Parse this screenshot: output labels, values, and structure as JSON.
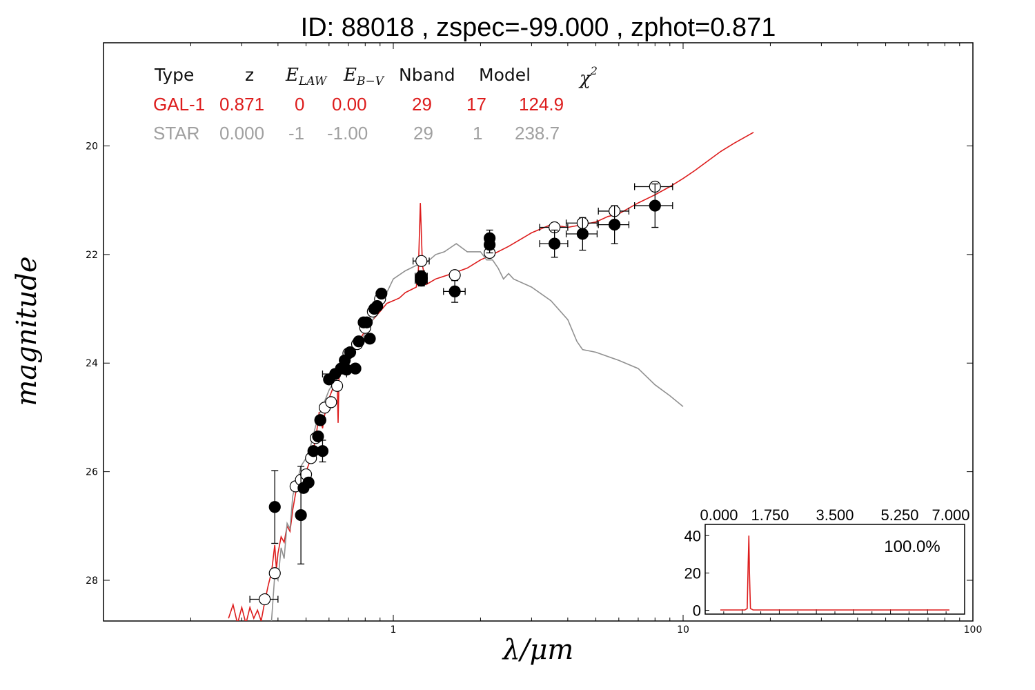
{
  "title": "ID:  88018 , zspec=-99.000 , zphot=0.871",
  "colors": {
    "galaxy": "#dd1c1c",
    "star": "#909090",
    "axis": "#000000"
  },
  "fit_table": {
    "headers": {
      "type": "Type",
      "z": "z",
      "elaw_base": "E",
      "elaw_sub": "LAW",
      "ebv_base": "E",
      "ebv_sub": "B−V",
      "nband": "Nband",
      "model": "Model",
      "chi_base": "χ",
      "chi_sup": "2"
    },
    "rows": [
      {
        "type": "GAL-1",
        "z": "0.871",
        "elaw": "0",
        "ebv": "0.00",
        "nband": "29",
        "model": "17",
        "chi2": "124.9",
        "color": "#dd1c1c"
      },
      {
        "type": "STAR",
        "z": "0.000",
        "elaw": "-1",
        "ebv": "-1.00",
        "nband": "29",
        "model": "1",
        "chi2": "238.7",
        "color": "#a0a0a0"
      }
    ]
  },
  "chart_data": [
    {
      "type": "scatter",
      "xlabel": "λ/μm",
      "ylabel": "magnitude",
      "xscale": "log",
      "xlim": [
        0.1,
        100
      ],
      "ylim": [
        28.75,
        18.1
      ],
      "y_inverted": true,
      "xticks": [
        1,
        10,
        100
      ],
      "xtick_labels": [
        "1",
        "10",
        "100"
      ],
      "yticks": [
        20,
        22,
        24,
        26,
        28
      ],
      "ytick_labels": [
        "20",
        "22",
        "24",
        "26",
        "28"
      ],
      "grid": false,
      "series": [
        {
          "kind": "model_line",
          "color": "#dd1c1c",
          "points": [
            [
              0.27,
              28.7
            ],
            [
              0.28,
              28.45
            ],
            [
              0.29,
              28.8
            ],
            [
              0.3,
              28.5
            ],
            [
              0.31,
              28.8
            ],
            [
              0.32,
              28.5
            ],
            [
              0.33,
              28.7
            ],
            [
              0.34,
              28.55
            ],
            [
              0.35,
              28.75
            ],
            [
              0.36,
              28.4
            ],
            [
              0.37,
              28.1
            ],
            [
              0.38,
              27.85
            ],
            [
              0.385,
              27.6
            ],
            [
              0.39,
              27.35
            ],
            [
              0.395,
              27.8
            ],
            [
              0.4,
              27.5
            ],
            [
              0.41,
              27.2
            ],
            [
              0.42,
              27.3
            ],
            [
              0.43,
              27.0
            ],
            [
              0.44,
              27.1
            ],
            [
              0.45,
              26.7
            ],
            [
              0.46,
              26.4
            ],
            [
              0.47,
              26.2
            ],
            [
              0.48,
              26.35
            ],
            [
              0.49,
              26.05
            ],
            [
              0.5,
              26.0
            ],
            [
              0.52,
              25.75
            ],
            [
              0.54,
              25.4
            ],
            [
              0.555,
              24.9
            ],
            [
              0.57,
              25.2
            ],
            [
              0.58,
              24.95
            ],
            [
              0.6,
              24.65
            ],
            [
              0.62,
              24.45
            ],
            [
              0.64,
              24.35
            ],
            [
              0.645,
              25.1
            ],
            [
              0.65,
              24.25
            ],
            [
              0.67,
              24.15
            ],
            [
              0.7,
              23.95
            ],
            [
              0.73,
              23.8
            ],
            [
              0.76,
              23.6
            ],
            [
              0.8,
              23.4
            ],
            [
              0.85,
              23.2
            ],
            [
              0.9,
              23.05
            ],
            [
              0.95,
              22.9
            ],
            [
              1.0,
              22.85
            ],
            [
              1.05,
              22.8
            ],
            [
              1.1,
              22.7
            ],
            [
              1.15,
              22.65
            ],
            [
              1.2,
              22.6
            ],
            [
              1.22,
              22.3
            ],
            [
              1.24,
              21.05
            ],
            [
              1.26,
              22.2
            ],
            [
              1.3,
              22.55
            ],
            [
              1.4,
              22.45
            ],
            [
              1.6,
              22.35
            ],
            [
              1.8,
              22.25
            ],
            [
              2.0,
              22.1
            ],
            [
              2.2,
              22.0
            ],
            [
              2.5,
              21.85
            ],
            [
              3.0,
              21.6
            ],
            [
              3.5,
              21.45
            ],
            [
              4.0,
              21.5
            ],
            [
              4.5,
              21.45
            ],
            [
              5.0,
              21.4
            ],
            [
              5.5,
              21.3
            ],
            [
              6.0,
              21.25
            ],
            [
              7.0,
              21.05
            ],
            [
              8.0,
              20.9
            ],
            [
              9.0,
              20.75
            ],
            [
              10.0,
              20.6
            ],
            [
              11.0,
              20.45
            ],
            [
              12.0,
              20.3
            ],
            [
              13.5,
              20.1
            ],
            [
              15.0,
              19.95
            ],
            [
              17.5,
              19.75
            ]
          ]
        },
        {
          "kind": "model_line",
          "color": "#909090",
          "points": [
            [
              0.38,
              28.75
            ],
            [
              0.39,
              27.9
            ],
            [
              0.4,
              28.0
            ],
            [
              0.41,
              27.4
            ],
            [
              0.42,
              27.6
            ],
            [
              0.43,
              26.95
            ],
            [
              0.44,
              27.05
            ],
            [
              0.45,
              26.45
            ],
            [
              0.46,
              26.2
            ],
            [
              0.47,
              26.1
            ],
            [
              0.48,
              25.9
            ],
            [
              0.5,
              25.75
            ],
            [
              0.52,
              25.5
            ],
            [
              0.54,
              25.15
            ],
            [
              0.56,
              24.9
            ],
            [
              0.58,
              24.7
            ],
            [
              0.6,
              24.5
            ],
            [
              0.63,
              24.3
            ],
            [
              0.66,
              24.15
            ],
            [
              0.7,
              23.95
            ],
            [
              0.74,
              23.75
            ],
            [
              0.78,
              23.55
            ],
            [
              0.82,
              23.35
            ],
            [
              0.86,
              23.15
            ],
            [
              0.9,
              22.95
            ],
            [
              0.95,
              22.7
            ],
            [
              1.0,
              22.45
            ],
            [
              1.1,
              22.3
            ],
            [
              1.2,
              22.2
            ],
            [
              1.3,
              22.15
            ],
            [
              1.4,
              22.0
            ],
            [
              1.5,
              21.95
            ],
            [
              1.65,
              21.8
            ],
            [
              1.8,
              21.95
            ],
            [
              2.0,
              21.95
            ],
            [
              2.1,
              22.1
            ],
            [
              2.2,
              22.1
            ],
            [
              2.3,
              22.25
            ],
            [
              2.4,
              22.45
            ],
            [
              2.5,
              22.35
            ],
            [
              2.6,
              22.45
            ],
            [
              3.0,
              22.6
            ],
            [
              3.5,
              22.85
            ],
            [
              4.0,
              23.2
            ],
            [
              4.3,
              23.6
            ],
            [
              4.5,
              23.75
            ],
            [
              5.0,
              23.8
            ],
            [
              6.0,
              23.95
            ],
            [
              7.0,
              24.1
            ],
            [
              8.0,
              24.4
            ],
            [
              9.0,
              24.6
            ],
            [
              10.0,
              24.8
            ]
          ]
        },
        {
          "kind": "observed",
          "fill": "#000000",
          "points": [
            [
              0.39,
              26.65,
              0.0,
              0.67
            ],
            [
              0.48,
              26.8,
              0.0,
              0.9
            ],
            [
              0.49,
              26.3,
              0.0,
              0.0
            ],
            [
              0.51,
              26.2,
              0.0,
              0.0
            ],
            [
              0.53,
              25.62,
              0.0,
              0.0
            ],
            [
              0.55,
              25.35,
              0.0,
              0.0
            ],
            [
              0.56,
              25.05,
              0.0,
              0.0
            ],
            [
              0.57,
              25.62,
              0.0,
              0.2
            ],
            [
              0.6,
              24.3,
              0.0,
              0.0
            ],
            [
              0.63,
              24.2,
              0.06,
              0.0
            ],
            [
              0.66,
              24.1,
              0.0,
              0.0
            ],
            [
              0.68,
              23.95,
              0.0,
              0.0
            ],
            [
              0.69,
              24.12,
              0.0,
              0.0
            ],
            [
              0.71,
              23.8,
              0.0,
              0.0
            ],
            [
              0.74,
              24.1,
              0.0,
              0.0
            ],
            [
              0.76,
              23.6,
              0.0,
              0.0
            ],
            [
              0.79,
              23.25,
              0.0,
              0.0
            ],
            [
              0.81,
              23.25,
              0.0,
              0.0
            ],
            [
              0.83,
              23.55,
              0.0,
              0.0
            ],
            [
              0.86,
              23.0,
              0.0,
              0.0
            ],
            [
              0.88,
              22.95,
              0.0,
              0.0
            ],
            [
              0.91,
              22.72,
              0.0,
              0.0
            ],
            [
              1.25,
              22.4,
              0.06,
              0.1
            ],
            [
              1.25,
              22.48,
              0.06,
              0.1
            ],
            [
              1.63,
              22.68,
              0.14,
              0.2
            ],
            [
              2.15,
              21.7,
              0.0,
              0.15
            ],
            [
              2.15,
              21.82,
              0.0,
              0.15
            ],
            [
              3.6,
              21.8,
              0.4,
              0.25
            ],
            [
              4.5,
              21.62,
              0.55,
              0.3
            ],
            [
              5.8,
              21.45,
              0.7,
              0.35
            ],
            [
              8.0,
              21.1,
              1.2,
              0.4
            ]
          ]
        },
        {
          "kind": "model_magnitudes",
          "fill": "#ffffff",
          "points": [
            [
              0.36,
              28.35,
              0.04
            ],
            [
              0.39,
              27.87,
              0.0
            ],
            [
              0.46,
              26.27,
              0.0
            ],
            [
              0.48,
              26.15,
              0.0
            ],
            [
              0.5,
              26.05,
              0.0
            ],
            [
              0.52,
              25.75,
              0.0
            ],
            [
              0.54,
              25.38,
              0.0
            ],
            [
              0.56,
              25.05,
              0.0
            ],
            [
              0.58,
              24.82,
              0.0
            ],
            [
              0.61,
              24.72,
              0.0
            ],
            [
              0.64,
              24.42,
              0.0
            ],
            [
              0.7,
              23.82,
              0.0
            ],
            [
              0.75,
              23.65,
              0.0
            ],
            [
              0.8,
              23.35,
              0.0
            ],
            [
              0.85,
              23.05,
              0.0
            ],
            [
              0.9,
              22.82,
              0.0
            ],
            [
              1.25,
              22.12,
              0.08
            ],
            [
              1.63,
              22.38,
              0.0
            ],
            [
              2.15,
              21.97,
              0.0
            ],
            [
              3.6,
              21.5,
              0.4
            ],
            [
              4.5,
              21.42,
              0.55
            ],
            [
              5.8,
              21.2,
              0.7
            ],
            [
              8.0,
              20.75,
              1.2
            ]
          ]
        }
      ]
    },
    {
      "type": "line",
      "role": "inset_redshift_pdf",
      "xlim": [
        0,
        7
      ],
      "ylim": [
        -2,
        46
      ],
      "xtick_labels": [
        "0.000",
        "1.750",
        "3.500",
        "5.250",
        "7.000"
      ],
      "ytick_labels": [
        "0",
        "20",
        "40"
      ],
      "annotation": "100.0%",
      "series": [
        {
          "color": "#dd1c1c",
          "points": [
            [
              0.0,
              0.2
            ],
            [
              0.75,
              0.2
            ],
            [
              0.82,
              1.0
            ],
            [
              0.85,
              25.0
            ],
            [
              0.871,
              40.0
            ],
            [
              0.89,
              20.0
            ],
            [
              0.92,
              1.0
            ],
            [
              1.0,
              0.2
            ],
            [
              7.0,
              0.2
            ]
          ]
        }
      ]
    }
  ]
}
